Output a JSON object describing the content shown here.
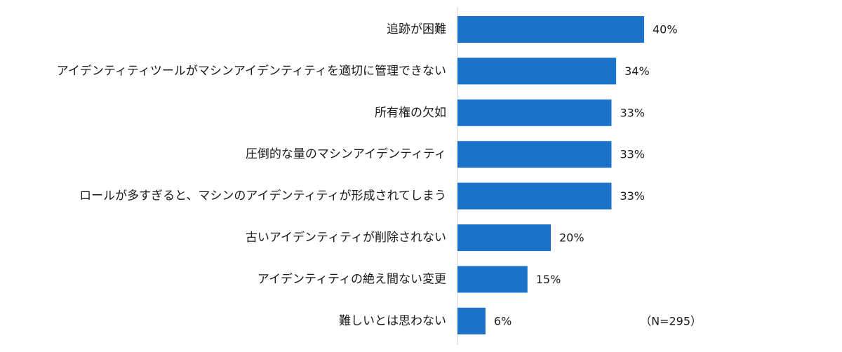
{
  "chart_data": {
    "type": "bar",
    "orientation": "horizontal",
    "categories": [
      "追跡が困難",
      "アイデンティティツールがマシンアイデンティティを適切に管理できない",
      "所有権の欠如",
      "圧倒的な量のマシンアイデンティティ",
      "ロールが多すぎると、マシンのアイデンティティが形成されてしまう",
      "古いアイデンティティが削除されない",
      "アイデンティティの絶え間ない変更",
      "難しいとは思わない"
    ],
    "values": [
      40,
      34,
      33,
      33,
      33,
      20,
      15,
      6
    ],
    "value_labels": [
      "40%",
      "34%",
      "33%",
      "33%",
      "33%",
      "20%",
      "15%",
      "6%"
    ],
    "bar_color": "#1a73c8",
    "axis_color": "#d0d0d0",
    "xlim": [
      0,
      40
    ],
    "grid": false,
    "note": "（N=295）"
  }
}
